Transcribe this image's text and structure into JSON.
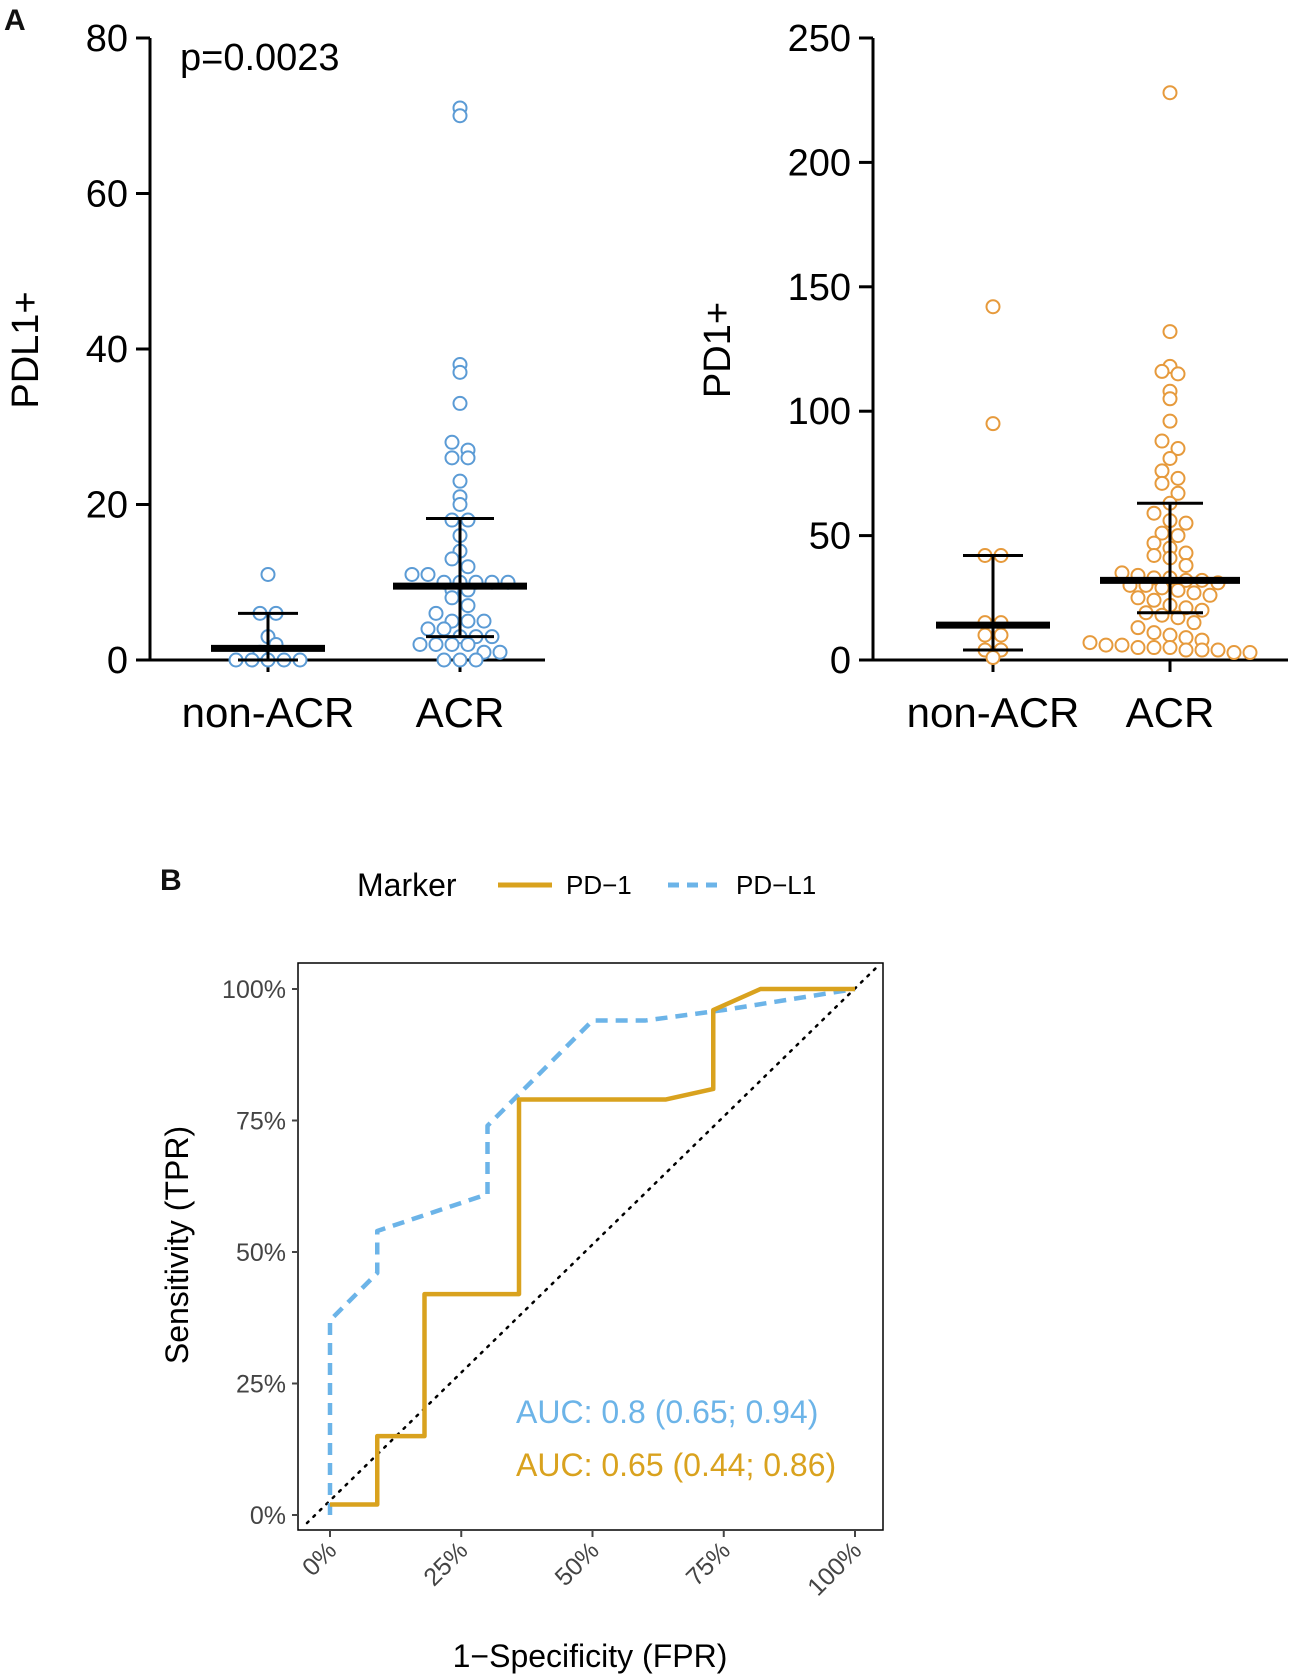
{
  "panels": {
    "a_label": "A",
    "b_label": "B"
  },
  "chart_data": [
    {
      "type": "scatter",
      "id": "pdl1",
      "ylabel": "PDL1+",
      "ylim": [
        0,
        80
      ],
      "yticks": [
        0,
        20,
        40,
        60,
        80
      ],
      "categories": [
        "non-ACR",
        "ACR"
      ],
      "annotation": "p=0.0023",
      "color": "#5B9BD5",
      "groups": [
        {
          "name": "non-ACR",
          "median": 1.5,
          "lower": 0,
          "upper": 6,
          "points": [
            0,
            0,
            0,
            0,
            0,
            1,
            2,
            3,
            6,
            6,
            11
          ]
        },
        {
          "name": "ACR",
          "median": 9.5,
          "lower": 3,
          "upper": 18.2,
          "points": [
            71,
            70,
            38,
            37,
            33,
            28,
            27,
            26,
            26,
            23,
            21,
            20,
            18,
            18,
            16,
            14,
            13,
            12,
            11,
            11,
            10,
            10,
            10,
            10,
            10,
            9,
            9,
            8,
            7,
            6,
            5,
            5,
            5,
            4,
            4,
            3,
            3,
            3,
            2,
            2,
            2,
            2,
            1,
            1,
            0,
            0,
            0
          ]
        }
      ]
    },
    {
      "type": "scatter",
      "id": "pd1",
      "ylabel": "PD1+",
      "ylim": [
        0,
        250
      ],
      "yticks": [
        0,
        50,
        100,
        150,
        200,
        250
      ],
      "categories": [
        "non-ACR",
        "ACR"
      ],
      "color": "#E69A3C",
      "groups": [
        {
          "name": "non-ACR",
          "median": 14,
          "lower": 4,
          "upper": 42,
          "points": [
            142,
            95,
            42,
            42,
            15,
            15,
            10,
            10,
            4,
            4,
            1
          ]
        },
        {
          "name": "ACR",
          "median": 32,
          "lower": 19,
          "upper": 63,
          "points": [
            228,
            132,
            118,
            116,
            115,
            108,
            105,
            96,
            88,
            85,
            81,
            76,
            73,
            71,
            67,
            63,
            59,
            56,
            55,
            51,
            50,
            47,
            45,
            43,
            42,
            41,
            38,
            35,
            34,
            33,
            33,
            32,
            32,
            31,
            30,
            30,
            29,
            28,
            27,
            26,
            25,
            24,
            22,
            21,
            20,
            19,
            18,
            17,
            15,
            13,
            11,
            10,
            9,
            8,
            7,
            6,
            6,
            5,
            5,
            5,
            4,
            4,
            4,
            3,
            3
          ]
        }
      ]
    },
    {
      "type": "line",
      "id": "roc",
      "xlabel": "1−Specificity (FPR)",
      "ylabel": "Sensitivity (TPR)",
      "xlim": [
        0,
        1
      ],
      "ylim": [
        0,
        1
      ],
      "xtick_labels": [
        "0%",
        "25%",
        "50%",
        "75%",
        "100%"
      ],
      "ytick_labels": [
        "0%",
        "25%",
        "50%",
        "75%",
        "100%"
      ],
      "legend": {
        "title": "Marker",
        "position": "top"
      },
      "series": [
        {
          "name": "PD−1",
          "color": "#D9A21E",
          "style": "solid",
          "auc_label": "AUC: 0.65 (0.44; 0.86)",
          "x": [
            0,
            0.09,
            0.09,
            0.18,
            0.18,
            0.36,
            0.36,
            0.64,
            0.73,
            0.73,
            0.82,
            1.0
          ],
          "y": [
            0.02,
            0.02,
            0.15,
            0.15,
            0.42,
            0.42,
            0.79,
            0.79,
            0.81,
            0.96,
            1.0,
            1.0
          ]
        },
        {
          "name": "PD−L1",
          "color": "#6CB4E8",
          "style": "dashed",
          "auc_label": "AUC: 0.8 (0.65; 0.94)",
          "x": [
            0,
            0,
            0.09,
            0.09,
            0.3,
            0.3,
            0.5,
            0.6,
            0.75,
            1.0
          ],
          "y": [
            0,
            0.37,
            0.46,
            0.54,
            0.61,
            0.74,
            0.94,
            0.94,
            0.96,
            1.0
          ]
        }
      ]
    }
  ]
}
